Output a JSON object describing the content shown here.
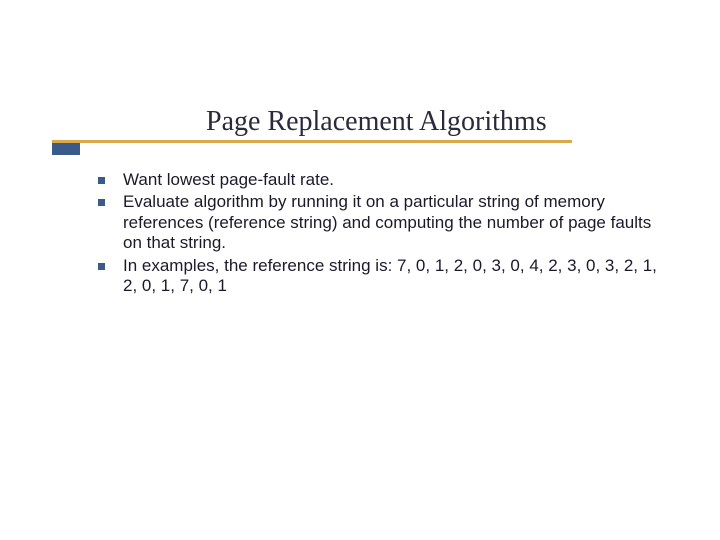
{
  "slide": {
    "title": "Page Replacement Algorithms",
    "title_font_family": "Times New Roman, serif",
    "title_font_size": 28,
    "title_color": "#2a2a3a",
    "accent_bar_long_color": "#d9a94a",
    "accent_bar_short_color": "#3a5a8a",
    "background_color": "#ffffff",
    "bullets": [
      {
        "text": "Want lowest page-fault rate."
      },
      {
        "text": "Evaluate algorithm by running it on a particular string of memory references (reference string) and computing the number of page faults on that string."
      },
      {
        "text": "In examples, the reference string is: 7, 0, 1, 2, 0, 3, 0, 4, 2, 3, 0, 3, 2, 1, 2, 0, 1, 7, 0, 1"
      }
    ],
    "bullet_marker_color": "#3a5a8a",
    "bullet_font_size": 17,
    "bullet_text_color": "#1a1a2a"
  }
}
